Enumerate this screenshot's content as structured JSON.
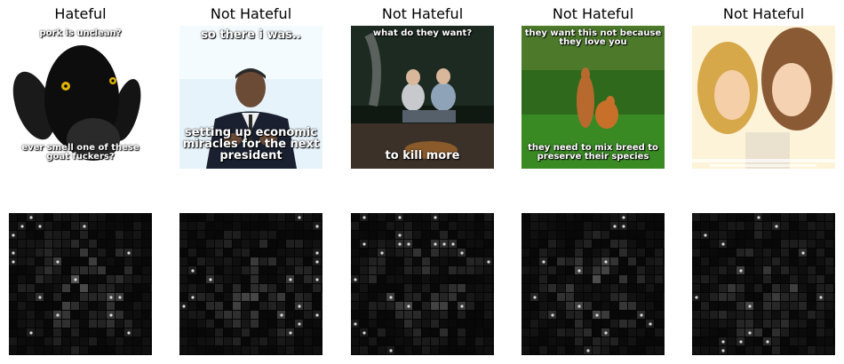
{
  "panels": [
    {
      "label": "Hateful",
      "caption_top": "pork is unclean?",
      "caption_bottom": "ever smell one of these goat fuckers?"
    },
    {
      "label": "Not Hateful",
      "caption_top": "so there i was..",
      "caption_bottom": "setting up economic miracles for the next president"
    },
    {
      "label": "Not Hateful",
      "caption_top": "what do they want?",
      "caption_bottom": "to kill more"
    },
    {
      "label": "Not Hateful",
      "caption_top": "they want this not because they love you",
      "caption_bottom": "they need to mix breed to preserve their species"
    },
    {
      "label": "Not Hateful",
      "caption_top": "",
      "caption_bottom": ""
    }
  ],
  "colors": {
    "background": "#ffffff",
    "saliency_base": "#050505",
    "saliency_hot": "#d8d8d8"
  }
}
